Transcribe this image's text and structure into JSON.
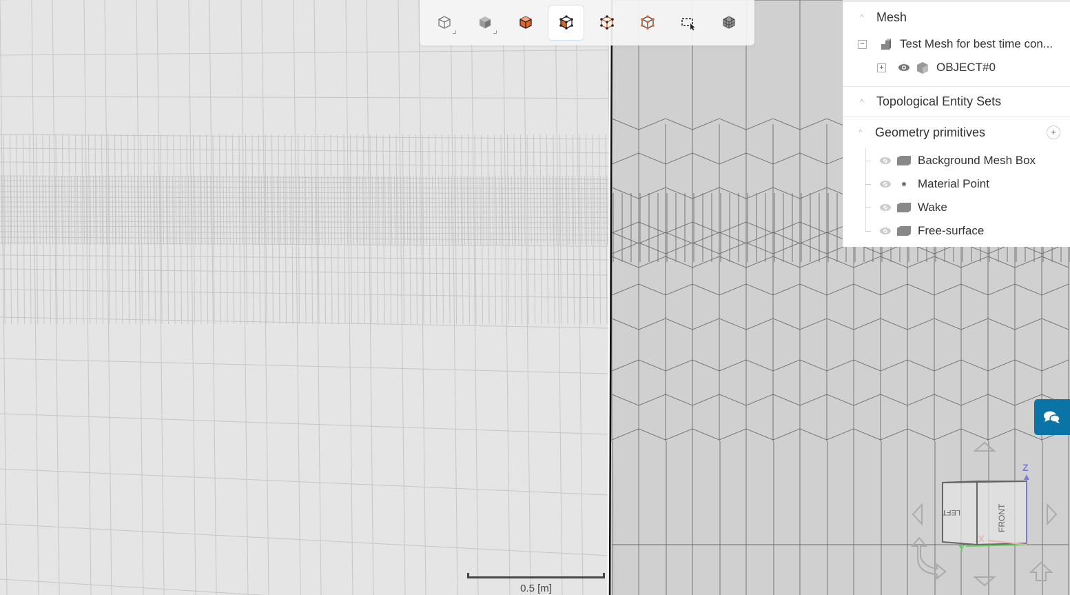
{
  "toolbar": {
    "buttons": [
      {
        "name": "wireframe-view",
        "icon": "cube-outline-icon"
      },
      {
        "name": "solid-view",
        "icon": "cube-solid-icon"
      },
      {
        "name": "select-volumes",
        "icon": "cube-orange-solid-icon"
      },
      {
        "name": "select-faces",
        "icon": "cube-face-icon",
        "active": true
      },
      {
        "name": "select-edges",
        "icon": "cube-edges-icon"
      },
      {
        "name": "select-nodes",
        "icon": "cube-nodes-icon"
      },
      {
        "name": "box-select",
        "icon": "box-select-icon"
      },
      {
        "name": "mesh-view",
        "icon": "mesh-cube-icon"
      }
    ]
  },
  "panel": {
    "mesh": {
      "title": "Mesh",
      "root": "Test Mesh for best time con...",
      "child": "OBJECT#0"
    },
    "topological": {
      "title": "Topological Entity Sets"
    },
    "geometry": {
      "title": "Geometry primitives",
      "items": [
        {
          "label": "Background Mesh Box",
          "icon": "box"
        },
        {
          "label": "Material Point",
          "icon": "point"
        },
        {
          "label": "Wake",
          "icon": "box"
        },
        {
          "label": "Free-surface",
          "icon": "box"
        }
      ]
    }
  },
  "scale_bar": {
    "label": "0.5 [m]"
  },
  "view_cube": {
    "left": "LEFT",
    "front": "FRONT",
    "axes": {
      "x": "X",
      "y": "Y",
      "z": "Z"
    }
  },
  "colors": {
    "accent": "#0a74a6",
    "orange": "#e0632a",
    "axis_x": "#e8a0a0",
    "axis_y": "#5fcf5f",
    "axis_z": "#7b7bde"
  }
}
